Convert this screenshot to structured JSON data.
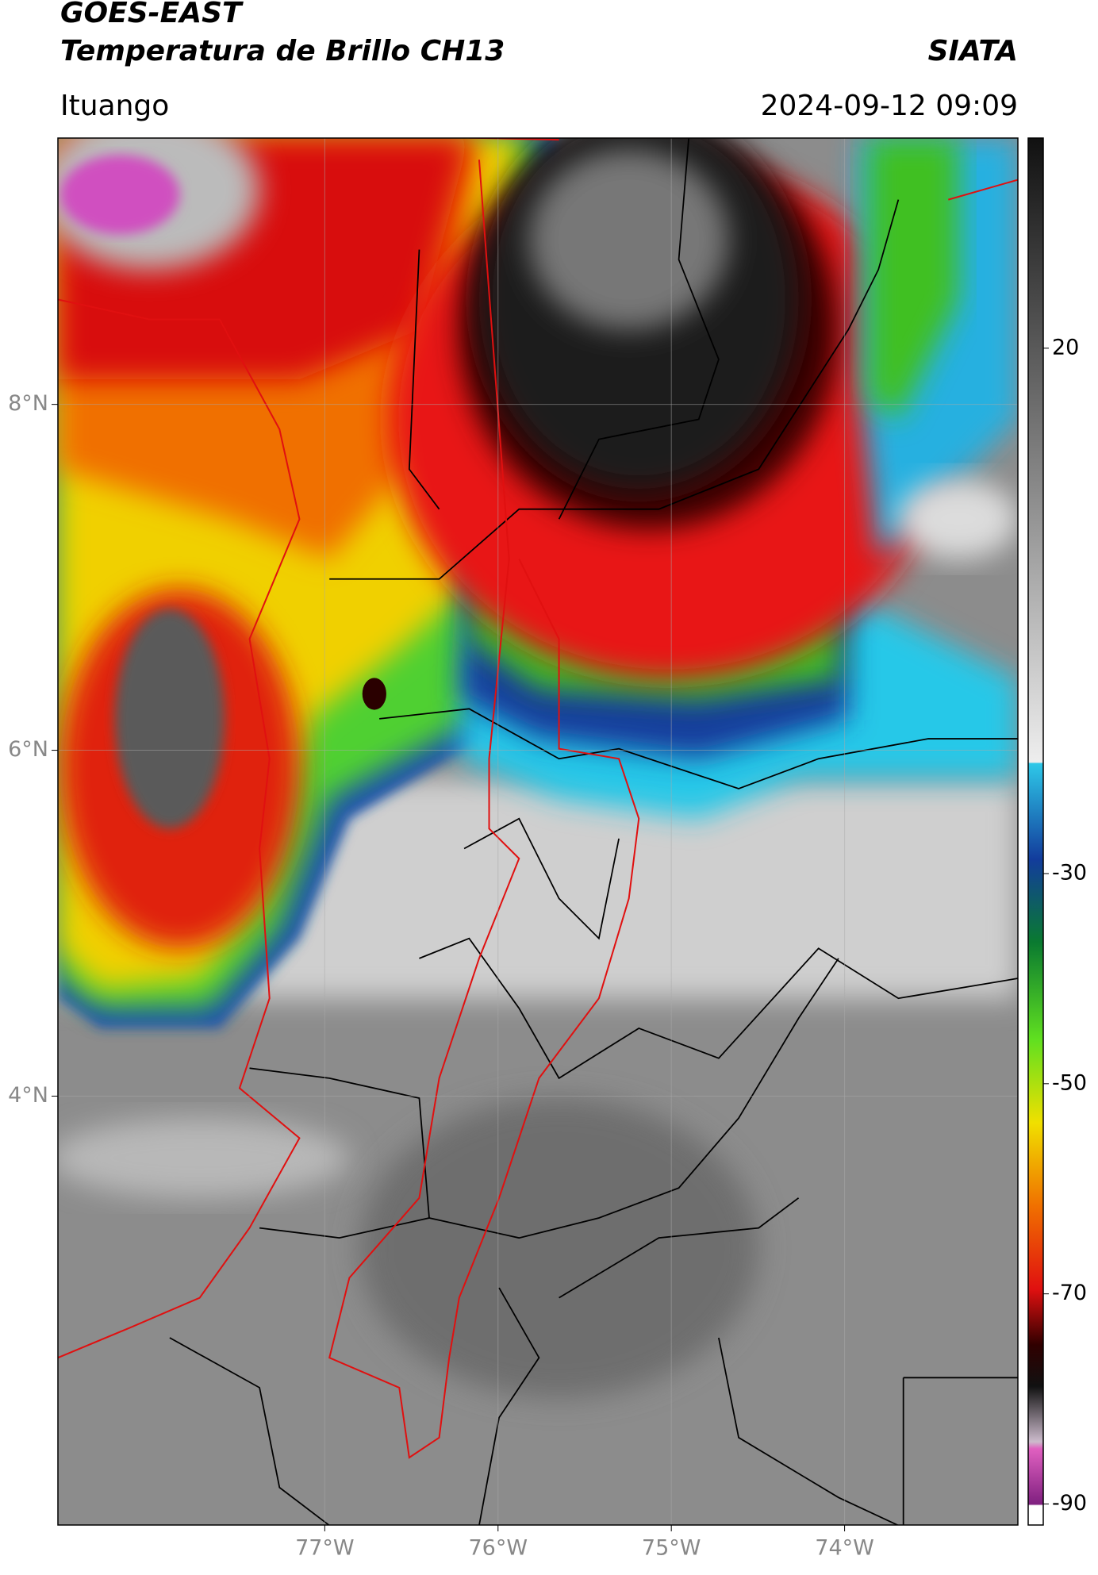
{
  "header": {
    "satellite": "GOES-EAST",
    "product": "Temperatura de Brillo CH13",
    "agency": "SIATA",
    "location": "Ituango",
    "datetime": "2024-09-12 09:09"
  },
  "map": {
    "xlim": [
      -78.54,
      -73.0
    ],
    "ylim": [
      1.52,
      9.54
    ],
    "xticks": [
      {
        "value": -77,
        "label": "77°W"
      },
      {
        "value": -76,
        "label": "76°W"
      },
      {
        "value": -75,
        "label": "75°W"
      },
      {
        "value": -74,
        "label": "74°W"
      }
    ],
    "yticks": [
      {
        "value": 8,
        "label": "8°N"
      },
      {
        "value": 6,
        "label": "6°N"
      },
      {
        "value": 4,
        "label": "4°N"
      }
    ],
    "grid": true
  },
  "colorbar": {
    "lim": [
      -92,
      40
    ],
    "ticks": [
      20,
      -30,
      -50,
      -70,
      -90
    ]
  }
}
